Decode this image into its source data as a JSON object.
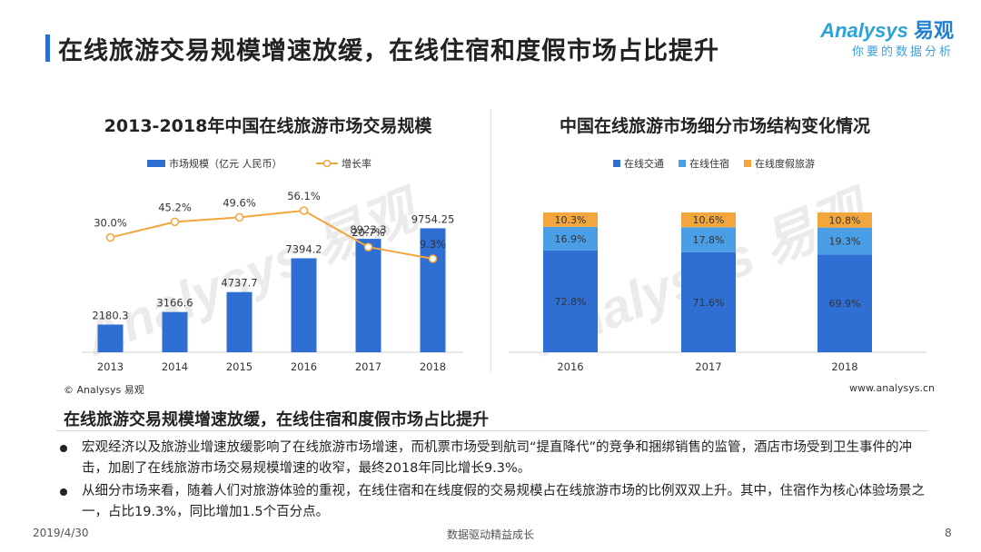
{
  "header": {
    "title": "在线旅游交易规模增速放缓，在线住宿和度假市场占比提升",
    "brand_latin": "Analysys",
    "brand_cn": "易观",
    "brand_slogan": "你要的数据分析"
  },
  "colors": {
    "accent": "#2a6fc9",
    "bar_blue": "#2f6fd4",
    "line_orange": "#f3a63b",
    "seg_transport": "#2f6fd4",
    "seg_lodging": "#4a9ee6",
    "seg_vacation": "#f3a63b"
  },
  "chart_data": [
    {
      "type": "bar",
      "title": "2013-2018年中国在线旅游市场交易规模",
      "categories": [
        "2013",
        "2014",
        "2015",
        "2016",
        "2017",
        "2018"
      ],
      "series": [
        {
          "name": "市场规模（亿元 人民币）",
          "type": "bar",
          "values": [
            2180.3,
            3166.6,
            4737.7,
            7394.2,
            8923.3,
            9754.25
          ],
          "labels": [
            "2180.3",
            "3166.6",
            "4737.7",
            "7394.2",
            "8923.3",
            "9754.25"
          ]
        },
        {
          "name": "增长率",
          "type": "line",
          "values": [
            30.0,
            45.2,
            49.6,
            56.1,
            20.7,
            9.3
          ],
          "labels": [
            "30.0%",
            "45.2%",
            "49.6%",
            "56.1%",
            "20.7%",
            "9.3%"
          ]
        }
      ],
      "xlabel": "",
      "ylabel": "",
      "legend": "top-center",
      "grid": false
    },
    {
      "type": "bar",
      "stacked": true,
      "title": "中国在线旅游市场细分市场结构变化情况",
      "categories": [
        "2016",
        "2017",
        "2018"
      ],
      "series": [
        {
          "name": "在线交通",
          "values": [
            72.8,
            71.6,
            69.9
          ],
          "labels": [
            "72.8%",
            "71.6%",
            "69.9%"
          ]
        },
        {
          "name": "在线住宿",
          "values": [
            16.9,
            17.8,
            19.3
          ],
          "labels": [
            "16.9%",
            "17.8%",
            "19.3%"
          ]
        },
        {
          "name": "在线度假旅游",
          "values": [
            10.3,
            10.6,
            10.8
          ],
          "labels": [
            "10.3%",
            "10.6%",
            "10.8%"
          ]
        }
      ],
      "ylim": [
        0,
        100
      ],
      "legend": "top-center",
      "grid": false
    }
  ],
  "sources": {
    "left": "© Analysys 易观",
    "right": "www.analysys.cn"
  },
  "summary": {
    "title": "在线旅游交易规模增速放缓，在线住宿和度假市场占比提升",
    "bullets": [
      "宏观经济以及旅游业增速放缓影响了在线旅游市场增速，而机票市场受到航司“提直降代”的竞争和捆绑销售的监管，酒店市场受到卫生事件的冲击，加剧了在线旅游市场交易规模增速的收窄，最终2018年同比增长9.3%。",
      "从细分市场来看，随着人们对旅游体验的重视，在线住宿和在线度假的交易规模占在线旅游市场的比例双双上升。其中，住宿作为核心体验场景之一，占比19.3%，同比增加1.5个百分点。"
    ]
  },
  "footer": {
    "date": "2019/4/30",
    "slogan": "数据驱动精益成长",
    "page": "8"
  }
}
